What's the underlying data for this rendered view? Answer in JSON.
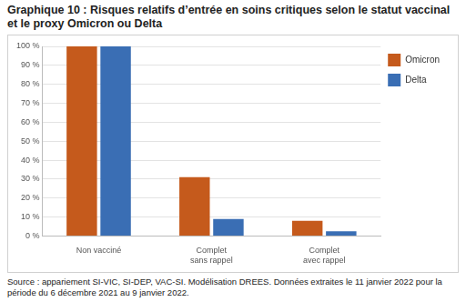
{
  "chart_data": {
    "type": "bar",
    "title": "Graphique 10 : Risques relatifs d’entrée en soins critiques selon le statut vaccinal et le proxy Omicron ou Delta",
    "source": "Source : appariement SI-VIC, SI-DEP, VAC-SI. Modélisation DREES. Données extraites le 11 janvier 2022 pour la période du 6 décembre 2021 au 9 janvier 2022.",
    "categories": [
      [
        "Non vacciné"
      ],
      [
        "Complet",
        "sans rappel"
      ],
      [
        "Complet",
        "avec rappel"
      ]
    ],
    "series": [
      {
        "name": "Omicron",
        "color": "#c55a1c",
        "values": [
          100,
          31,
          8
        ]
      },
      {
        "name": "Delta",
        "color": "#3a6eb4",
        "values": [
          100,
          9,
          2.5
        ]
      }
    ],
    "ylim": [
      0,
      100
    ],
    "yticks": [
      {
        "value": 0,
        "label": "0 %"
      },
      {
        "value": 10,
        "label": "10 %"
      },
      {
        "value": 20,
        "label": "20 %"
      },
      {
        "value": 30,
        "label": "30 %"
      },
      {
        "value": 40,
        "label": "40 %"
      },
      {
        "value": 50,
        "label": "50 %"
      },
      {
        "value": 60,
        "label": "60 %"
      },
      {
        "value": 70,
        "label": "70 %"
      },
      {
        "value": 80,
        "label": "80 %"
      },
      {
        "value": 90,
        "label": "90 %"
      },
      {
        "value": 100,
        "label": "100 %"
      }
    ],
    "grid": true,
    "legend": "right"
  }
}
